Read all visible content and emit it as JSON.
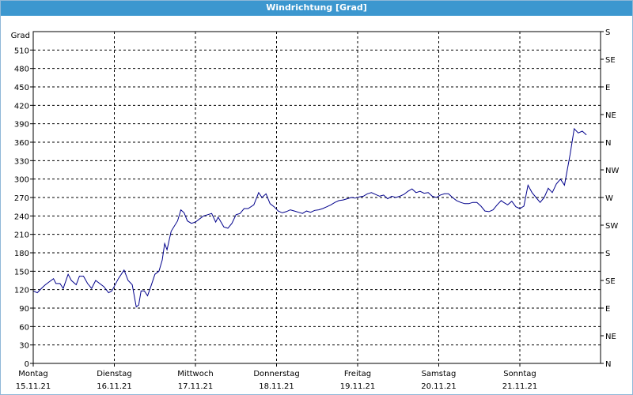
{
  "window": {
    "title": "Windrichtung [Grad]"
  },
  "colors": {
    "titlebar": "#3c97cf",
    "line": "#00008b",
    "grid": "#000000"
  },
  "chart_data": {
    "type": "line",
    "title": "Windrichtung [Grad]",
    "ylabel": "Grad",
    "ylim": [
      0,
      540
    ],
    "yticks": [
      0,
      30,
      60,
      90,
      120,
      150,
      180,
      210,
      240,
      270,
      300,
      330,
      360,
      390,
      420,
      450,
      480,
      510
    ],
    "y2_ticks": [
      {
        "value": 0,
        "label": "N"
      },
      {
        "value": 45,
        "label": "NE"
      },
      {
        "value": 90,
        "label": "E"
      },
      {
        "value": 135,
        "label": "SE"
      },
      {
        "value": 180,
        "label": "S"
      },
      {
        "value": 225,
        "label": "SW"
      },
      {
        "value": 270,
        "label": "W"
      },
      {
        "value": 315,
        "label": "NW"
      },
      {
        "value": 360,
        "label": "N"
      },
      {
        "value": 405,
        "label": "NE"
      },
      {
        "value": 450,
        "label": "E"
      },
      {
        "value": 495,
        "label": "SE"
      },
      {
        "value": 540,
        "label": "S"
      }
    ],
    "xlim": [
      0,
      7
    ],
    "x_unit": "days",
    "day_labels": [
      {
        "x": 0,
        "weekday": "Montag",
        "date": "15.11.21"
      },
      {
        "x": 1,
        "weekday": "Dienstag",
        "date": "16.11.21"
      },
      {
        "x": 2,
        "weekday": "Mittwoch",
        "date": "17.11.21"
      },
      {
        "x": 3,
        "weekday": "Donnerstag",
        "date": "18.11.21"
      },
      {
        "x": 4,
        "weekday": "Freitag",
        "date": "19.11.21"
      },
      {
        "x": 5,
        "weekday": "Samstag",
        "date": "20.11.21"
      },
      {
        "x": 6,
        "weekday": "Sonntag",
        "date": "21.11.21"
      }
    ],
    "grid": true,
    "series": [
      {
        "values": [
          [
            0.0,
            118
          ],
          [
            0.05,
            115
          ],
          [
            0.1,
            122
          ],
          [
            0.15,
            128
          ],
          [
            0.25,
            138
          ],
          [
            0.28,
            130
          ],
          [
            0.33,
            130
          ],
          [
            0.37,
            122
          ],
          [
            0.43,
            145
          ],
          [
            0.47,
            135
          ],
          [
            0.53,
            128
          ],
          [
            0.57,
            142
          ],
          [
            0.62,
            142
          ],
          [
            0.67,
            130
          ],
          [
            0.72,
            122
          ],
          [
            0.77,
            135
          ],
          [
            0.82,
            130
          ],
          [
            0.87,
            125
          ],
          [
            0.93,
            115
          ],
          [
            0.97,
            118
          ],
          [
            1.05,
            138
          ],
          [
            1.12,
            152
          ],
          [
            1.17,
            135
          ],
          [
            1.22,
            128
          ],
          [
            1.27,
            92
          ],
          [
            1.3,
            95
          ],
          [
            1.33,
            118
          ],
          [
            1.37,
            118
          ],
          [
            1.41,
            110
          ],
          [
            1.45,
            125
          ],
          [
            1.5,
            145
          ],
          [
            1.55,
            150
          ],
          [
            1.59,
            168
          ],
          [
            1.62,
            195
          ],
          [
            1.65,
            185
          ],
          [
            1.7,
            215
          ],
          [
            1.78,
            232
          ],
          [
            1.82,
            250
          ],
          [
            1.86,
            245
          ],
          [
            1.9,
            232
          ],
          [
            1.95,
            228
          ],
          [
            2.0,
            230
          ],
          [
            2.05,
            235
          ],
          [
            2.1,
            240
          ],
          [
            2.15,
            242
          ],
          [
            2.2,
            244
          ],
          [
            2.25,
            230
          ],
          [
            2.28,
            238
          ],
          [
            2.35,
            222
          ],
          [
            2.4,
            220
          ],
          [
            2.45,
            228
          ],
          [
            2.5,
            242
          ],
          [
            2.55,
            244
          ],
          [
            2.6,
            252
          ],
          [
            2.65,
            252
          ],
          [
            2.72,
            258
          ],
          [
            2.78,
            278
          ],
          [
            2.82,
            270
          ],
          [
            2.87,
            276
          ],
          [
            2.92,
            260
          ],
          [
            2.97,
            255
          ],
          [
            3.02,
            248
          ],
          [
            3.07,
            245
          ],
          [
            3.12,
            247
          ],
          [
            3.17,
            250
          ],
          [
            3.22,
            248
          ],
          [
            3.27,
            246
          ],
          [
            3.32,
            244
          ],
          [
            3.37,
            248
          ],
          [
            3.42,
            246
          ],
          [
            3.47,
            249
          ],
          [
            3.52,
            250
          ],
          [
            3.57,
            252
          ],
          [
            3.62,
            255
          ],
          [
            3.67,
            258
          ],
          [
            3.72,
            262
          ],
          [
            3.77,
            265
          ],
          [
            3.82,
            266
          ],
          [
            3.87,
            268
          ],
          [
            3.92,
            270
          ],
          [
            3.97,
            269
          ],
          [
            4.02,
            271
          ],
          [
            4.07,
            272
          ],
          [
            4.12,
            276
          ],
          [
            4.17,
            278
          ],
          [
            4.22,
            275
          ],
          [
            4.27,
            272
          ],
          [
            4.32,
            274
          ],
          [
            4.37,
            268
          ],
          [
            4.42,
            272
          ],
          [
            4.47,
            270
          ],
          [
            4.52,
            272
          ],
          [
            4.57,
            275
          ],
          [
            4.62,
            280
          ],
          [
            4.67,
            284
          ],
          [
            4.72,
            278
          ],
          [
            4.77,
            280
          ],
          [
            4.82,
            277
          ],
          [
            4.87,
            278
          ],
          [
            4.92,
            272
          ],
          [
            4.97,
            270
          ],
          [
            5.02,
            274
          ],
          [
            5.07,
            276
          ],
          [
            5.12,
            276
          ],
          [
            5.17,
            270
          ],
          [
            5.22,
            265
          ],
          [
            5.27,
            262
          ],
          [
            5.32,
            260
          ],
          [
            5.37,
            260
          ],
          [
            5.42,
            262
          ],
          [
            5.47,
            262
          ],
          [
            5.52,
            256
          ],
          [
            5.57,
            248
          ],
          [
            5.62,
            247
          ],
          [
            5.67,
            250
          ],
          [
            5.72,
            258
          ],
          [
            5.77,
            265
          ],
          [
            5.8,
            262
          ],
          [
            5.85,
            258
          ],
          [
            5.9,
            264
          ],
          [
            5.95,
            255
          ],
          [
            6.0,
            252
          ],
          [
            6.05,
            256
          ],
          [
            6.1,
            290
          ],
          [
            6.15,
            278
          ],
          [
            6.2,
            270
          ],
          [
            6.25,
            262
          ],
          [
            6.3,
            270
          ],
          [
            6.35,
            285
          ],
          [
            6.4,
            278
          ],
          [
            6.45,
            292
          ],
          [
            6.5,
            300
          ],
          [
            6.55,
            290
          ],
          [
            6.62,
            340
          ],
          [
            6.67,
            382
          ],
          [
            6.72,
            375
          ],
          [
            6.77,
            378
          ],
          [
            6.82,
            372
          ]
        ]
      }
    ]
  }
}
